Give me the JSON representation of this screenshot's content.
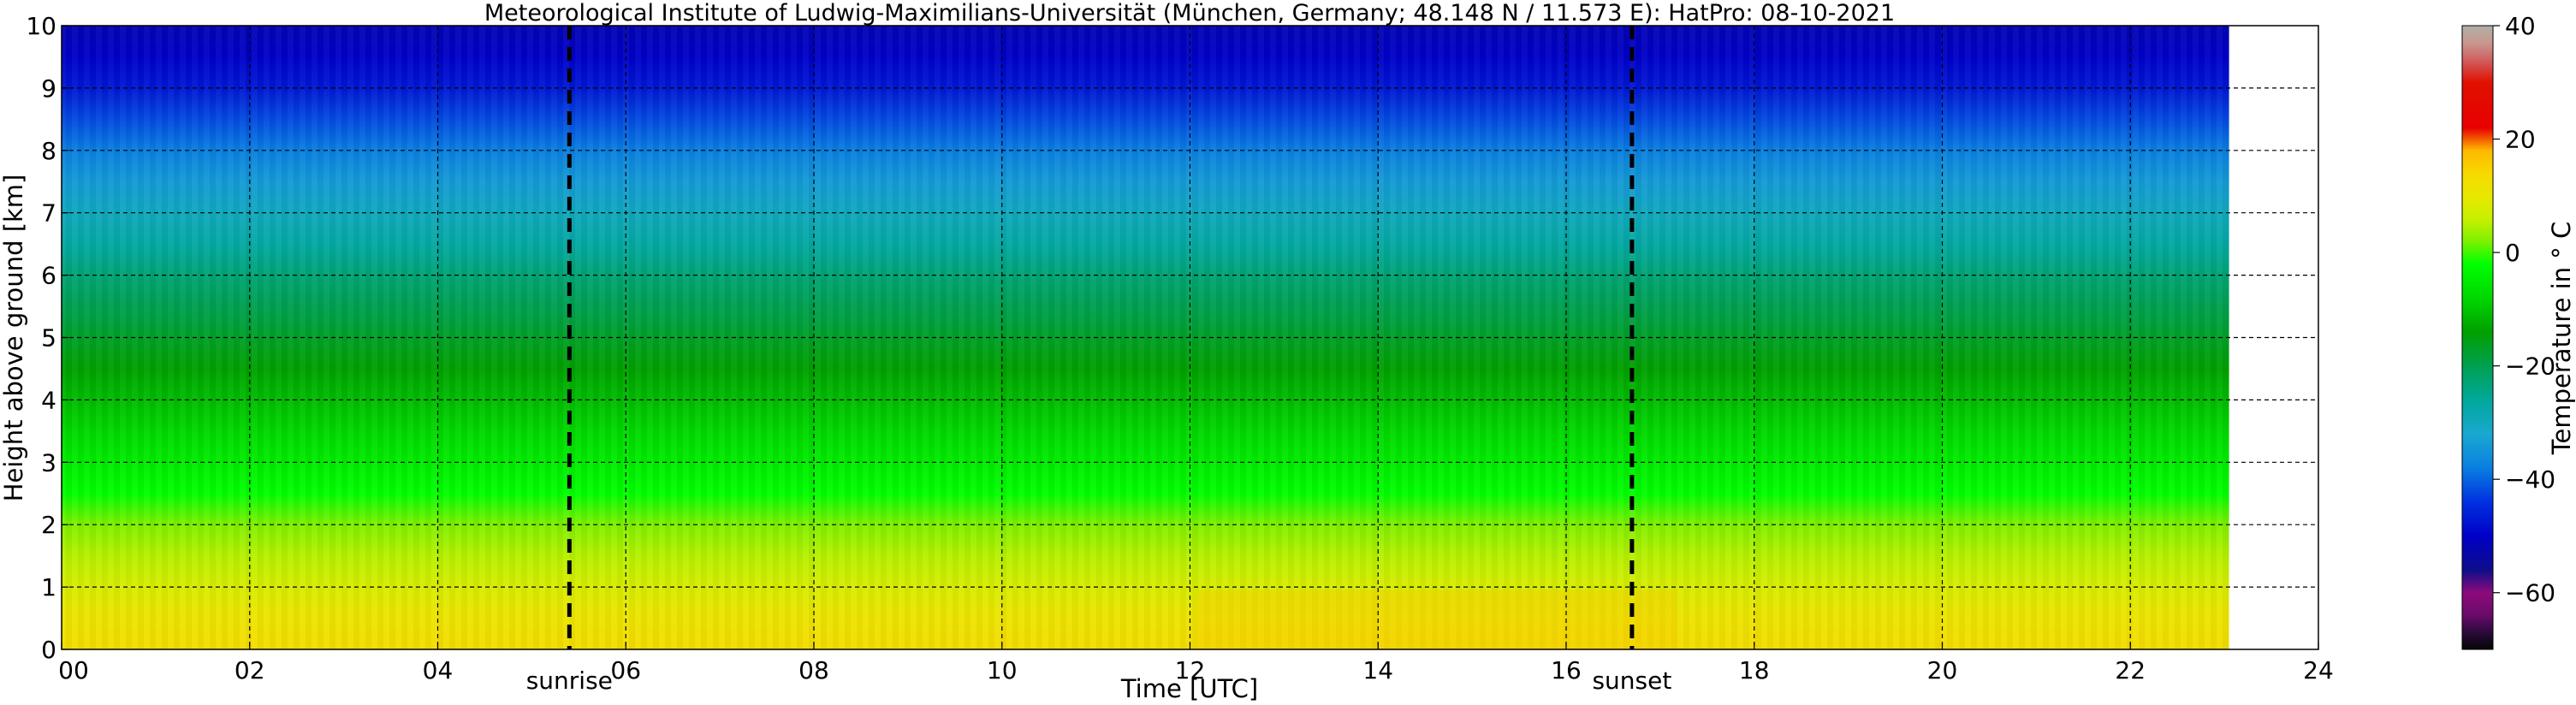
{
  "chart_data": {
    "type": "heatmap",
    "title": "Meteorological Institute of Ludwig-Maximilians-Universität (München, Germany; 48.148 N / 11.573 E):    HatPro: 08-10-2021",
    "xlabel": "Time [UTC]",
    "ylabel": "Height above ground [km]",
    "xlim": [
      0,
      24
    ],
    "ylim": [
      0,
      10
    ],
    "x_ticks": [
      0,
      2,
      4,
      6,
      8,
      10,
      12,
      14,
      16,
      18,
      20,
      22,
      24
    ],
    "x_tick_labels": [
      "00",
      "02",
      "04",
      "06",
      "08",
      "10",
      "12",
      "14",
      "16",
      "18",
      "20",
      "22",
      "24"
    ],
    "y_ticks": [
      0,
      1,
      2,
      3,
      4,
      5,
      6,
      7,
      8,
      9,
      10
    ],
    "y_tick_labels": [
      "0",
      "1",
      "2",
      "3",
      "4",
      "5",
      "6",
      "7",
      "8",
      "9",
      "10"
    ],
    "grid": true,
    "data_extent_hours": [
      0,
      23.05
    ],
    "annotations": [
      {
        "label": "sunrise",
        "x": 5.4
      },
      {
        "label": "sunset",
        "x": 16.7
      }
    ],
    "temperature_profile": {
      "height_km": [
        0,
        0.5,
        1,
        1.5,
        2,
        2.5,
        3,
        3.5,
        4,
        4.5,
        5,
        5.5,
        6,
        6.5,
        7,
        7.5,
        8,
        8.5,
        9,
        9.5,
        10
      ],
      "temperature_c": [
        13,
        11,
        8,
        5,
        2,
        -2,
        -5,
        -8,
        -11,
        -14,
        -17,
        -20,
        -23,
        -27,
        -30,
        -34,
        -38,
        -42,
        -47,
        -50,
        -52
      ]
    },
    "colorbar": {
      "label": "Temperature in ° C",
      "range": [
        -70,
        40
      ],
      "ticks": [
        -60,
        -40,
        -20,
        0,
        20,
        40
      ],
      "tick_labels": [
        "−60",
        "−40",
        "−20",
        "0",
        "20",
        "40"
      ],
      "colors": [
        {
          "t": -70,
          "color": "#050505"
        },
        {
          "t": -67,
          "color": "#2a0a3a"
        },
        {
          "t": -64,
          "color": "#6a0b6a"
        },
        {
          "t": -60,
          "color": "#8c0b7c"
        },
        {
          "t": -56,
          "color": "#0d0d8a"
        },
        {
          "t": -50,
          "color": "#0000c8"
        },
        {
          "t": -44,
          "color": "#0030e0"
        },
        {
          "t": -38,
          "color": "#0a7fe0"
        },
        {
          "t": -32,
          "color": "#1aa8d0"
        },
        {
          "t": -26,
          "color": "#00a89a"
        },
        {
          "t": -20,
          "color": "#00a050"
        },
        {
          "t": -14,
          "color": "#00a000"
        },
        {
          "t": -8,
          "color": "#00d800"
        },
        {
          "t": -2,
          "color": "#00ff00"
        },
        {
          "t": 2,
          "color": "#80f000"
        },
        {
          "t": 6,
          "color": "#c8f000"
        },
        {
          "t": 10,
          "color": "#e8e800"
        },
        {
          "t": 14,
          "color": "#f8d800"
        },
        {
          "t": 18,
          "color": "#ffb800"
        },
        {
          "t": 22,
          "color": "#e80000"
        },
        {
          "t": 30,
          "color": "#e01000"
        },
        {
          "t": 34,
          "color": "#d06060"
        },
        {
          "t": 37,
          "color": "#c89890"
        },
        {
          "t": 40,
          "color": "#b0b0a8"
        }
      ]
    }
  }
}
